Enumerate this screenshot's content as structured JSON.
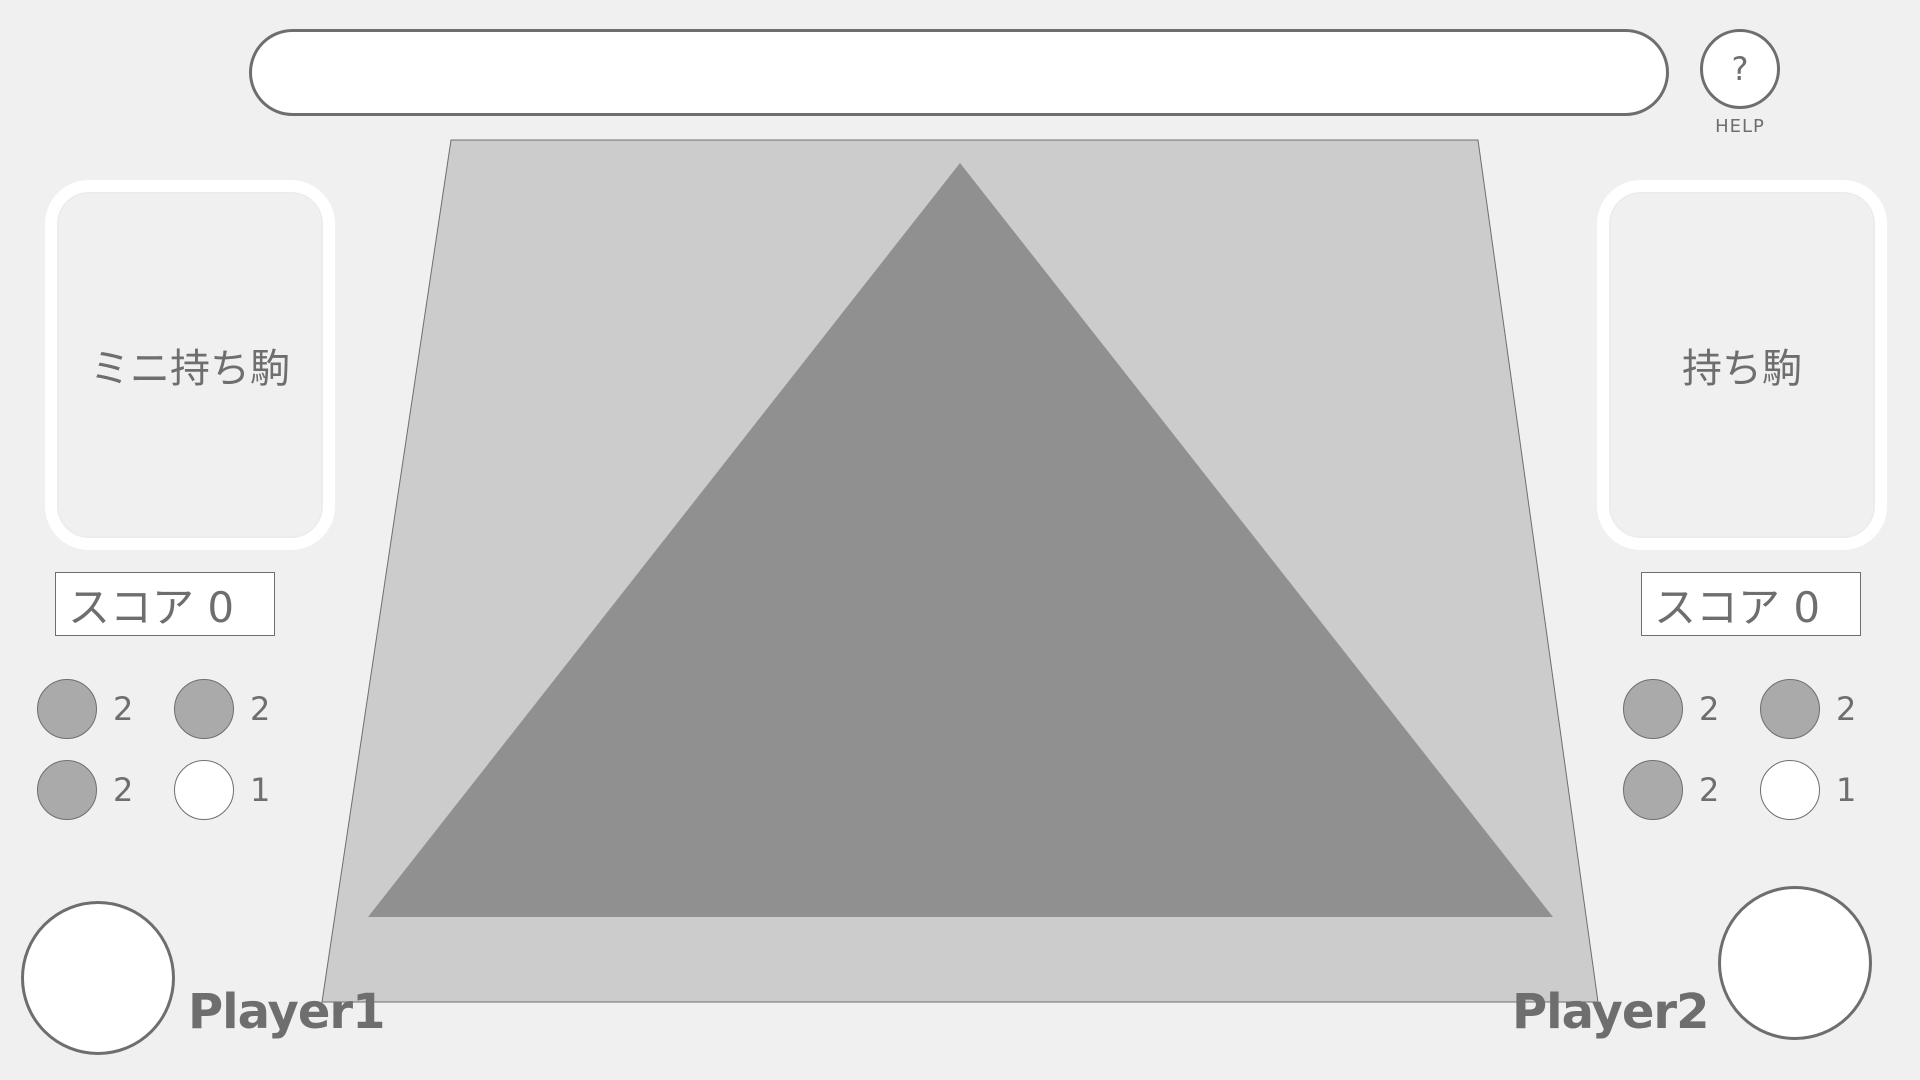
{
  "message_bar": {
    "text": ""
  },
  "help": {
    "icon": "?",
    "label": "HELP"
  },
  "board": {
    "colors": {
      "board": "#cccccc",
      "triangle": "#909090",
      "outline": "#6e6e6e"
    }
  },
  "players": [
    {
      "hand_label": "ミニ持ち駒",
      "score_text": "スコア 0",
      "name": "Player1",
      "pieces": [
        {
          "color": "gray",
          "count": "2"
        },
        {
          "color": "gray",
          "count": "2"
        },
        {
          "color": "gray",
          "count": "2"
        },
        {
          "color": "white",
          "count": "1"
        }
      ]
    },
    {
      "hand_label": "持ち駒",
      "score_text": "スコア 0",
      "name": "Player2",
      "pieces": [
        {
          "color": "gray",
          "count": "2"
        },
        {
          "color": "gray",
          "count": "2"
        },
        {
          "color": "gray",
          "count": "2"
        },
        {
          "color": "white",
          "count": "1"
        }
      ]
    }
  ]
}
